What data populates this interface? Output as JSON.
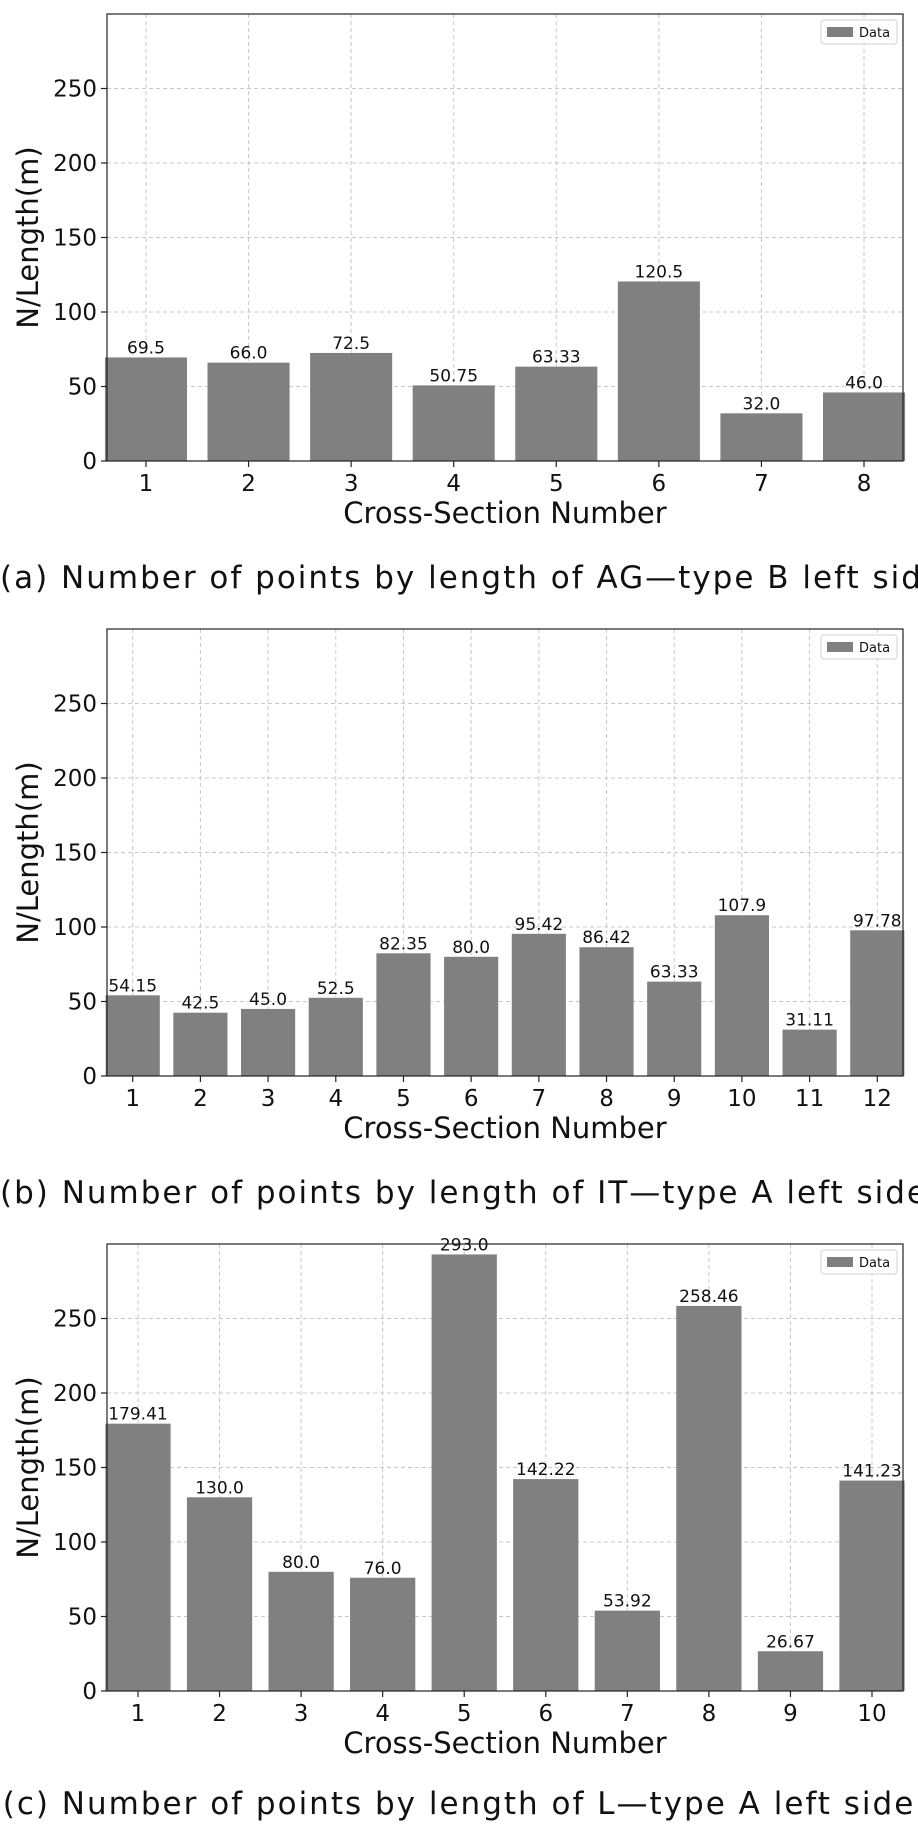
{
  "chart_data": [
    {
      "type": "bar",
      "categories": [
        "1",
        "2",
        "3",
        "4",
        "5",
        "6",
        "7",
        "8"
      ],
      "values": [
        69.5,
        66.0,
        72.5,
        50.75,
        63.33,
        120.5,
        32.0,
        46.0
      ],
      "value_labels": [
        "69.5",
        "66.0",
        "72.5",
        "50.75",
        "63.33",
        "120.5",
        "32.0",
        "46.0"
      ],
      "xlabel": "Cross-Section Number",
      "ylabel": "N/Length(m)",
      "ylim": [
        0,
        300
      ],
      "yticks": [
        0,
        50,
        100,
        150,
        200,
        250
      ],
      "legend": "Data",
      "legend_position": "top-right",
      "grid": true,
      "caption": "(a) Number of points by length of AG—type B left side",
      "bar_color": "#808080"
    },
    {
      "type": "bar",
      "categories": [
        "1",
        "2",
        "3",
        "4",
        "5",
        "6",
        "7",
        "8",
        "9",
        "10",
        "11",
        "12"
      ],
      "values": [
        54.15,
        42.5,
        45.0,
        52.5,
        82.35,
        80.0,
        95.42,
        86.42,
        63.33,
        107.9,
        31.11,
        97.78
      ],
      "value_labels": [
        "54.15",
        "42.5",
        "45.0",
        "52.5",
        "82.35",
        "80.0",
        "95.42",
        "86.42",
        "63.33",
        "107.9",
        "31.11",
        "97.78"
      ],
      "xlabel": "Cross-Section Number",
      "ylabel": "N/Length(m)",
      "ylim": [
        0,
        300
      ],
      "yticks": [
        0,
        50,
        100,
        150,
        200,
        250
      ],
      "legend": "Data",
      "legend_position": "top-right",
      "grid": true,
      "caption": "(b) Number of points by length of IT—type A left side",
      "bar_color": "#808080"
    },
    {
      "type": "bar",
      "categories": [
        "1",
        "2",
        "3",
        "4",
        "5",
        "6",
        "7",
        "8",
        "9",
        "10"
      ],
      "values": [
        179.41,
        130.0,
        80.0,
        76.0,
        293.0,
        142.22,
        53.92,
        258.46,
        26.67,
        141.23
      ],
      "value_labels": [
        "179.41",
        "130.0",
        "80.0",
        "76.0",
        "293.0",
        "142.22",
        "53.92",
        "258.46",
        "26.67",
        "141.23"
      ],
      "xlabel": "Cross-Section Number",
      "ylabel": "N/Length(m)",
      "ylim": [
        0,
        300
      ],
      "yticks": [
        0,
        50,
        100,
        150,
        200,
        250
      ],
      "legend": "Data",
      "legend_position": "top-right",
      "grid": true,
      "caption": "(c) Number of points by length of L—type A left side",
      "bar_color": "#808080"
    }
  ]
}
